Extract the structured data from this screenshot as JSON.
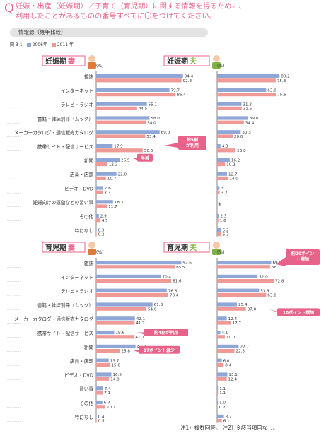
{
  "header": {
    "q_mark": "Q",
    "question_line1": "妊娠・出産（妊娠期）／子育て（育児期）に関する情報を得るために、",
    "question_line2": "利用したことがあるものの番号すべてに〇をつけてください。",
    "subheading": "情報源（経年比較）",
    "figure_label": "図 3-1",
    "legend_2006": "2006年",
    "legend_2011": "2011 年"
  },
  "colors": {
    "y2006": "#8fa7d6",
    "y2011": "#f09a98",
    "accent_pink": "#e8638a",
    "green": "#7cb342"
  },
  "note": "注1）複数回答。 注2）※該当項目なし。",
  "chart_data": [
    {
      "type": "bar",
      "title": "妊娠期妻",
      "title_main": "妊娠期",
      "title_role": "妻",
      "unit": "(%)",
      "xlim": [
        0,
        100
      ],
      "categories": [
        "雑誌",
        "インターネット",
        "テレビ・ラジオ",
        "書籍・雑誌別冊（ムック）",
        "メーカーカタログ・通信販売カタログ",
        "携帯サイト・配信サービス",
        "新聞",
        "店員・店頭",
        "ビデオ・DVD",
        "妊婦向けの運動などの習い事",
        "その他",
        "特になし"
      ],
      "series": [
        {
          "name": "2006年",
          "values": [
            94.4,
            79.7,
            55.1,
            58.0,
            69.0,
            17.9,
            25.5,
            22.0,
            7.6,
            18.3,
            2.9,
            0.3
          ]
        },
        {
          "name": "2011 年",
          "values": [
            92.8,
            86.4,
            44.5,
            54.0,
            53.4,
            50.6,
            12.2,
            10.7,
            7.3,
            11.7,
            4.5,
            0.2
          ]
        }
      ],
      "callouts": [
        {
          "text": "約5割が利用"
        },
        {
          "text": "半減"
        }
      ]
    },
    {
      "type": "bar",
      "title": "妊娠期夫",
      "title_main": "妊娠期",
      "title_role": "夫",
      "unit": "(%)",
      "xlim": [
        0,
        100
      ],
      "categories": [
        "雑誌",
        "インターネット",
        "テレビ・ラジオ",
        "書籍・雑誌別冊（ムック）",
        "メーカーカタログ・通信販売カタログ",
        "携帯サイト・配信サービス",
        "新聞",
        "店員・店頭",
        "ビデオ・DVD",
        "妊婦向けの運動などの習い事",
        "その他",
        "特になし"
      ],
      "series": [
        {
          "name": "2006年",
          "values": [
            80.2,
            63.0,
            31.3,
            39.8,
            30.3,
            4.3,
            16.2,
            12.7,
            3.1,
            null,
            2.3,
            5.2
          ]
        },
        {
          "name": "2011 年",
          "values": [
            75.3,
            75.6,
            31.6,
            34.4,
            20.0,
            23.8,
            10.2,
            14.0,
            3.2,
            null,
            1.6,
            5.3
          ]
        }
      ],
      "na_marker": "※"
    },
    {
      "type": "bar",
      "title": "育児期妻",
      "title_main": "育児期",
      "title_role": "妻",
      "unit": "(%)",
      "xlim": [
        0,
        100
      ],
      "categories": [
        "雑誌",
        "インターネット",
        "テレビ・ラジオ",
        "書籍・雑誌別冊（ムック）",
        "メーカーカタログ・通信販売カタログ",
        "携帯サイト・配信サービス",
        "新聞",
        "店員・店頭",
        "ビデオ・DVD",
        "習い事",
        "その他",
        "特になし"
      ],
      "series": [
        {
          "name": "2006年",
          "values": [
            92.6,
            70.4,
            76.8,
            61.3,
            42.1,
            19.6,
            42.8,
            13.7,
            16.5,
            7.4,
            6.7,
            0.4
          ]
        },
        {
          "name": "2011 年",
          "values": [
            85.5,
            81.6,
            78.4,
            54.6,
            41.7,
            41.1,
            25.8,
            15.0,
            14.0,
            7.1,
            10.1,
            0.5
          ]
        }
      ],
      "callouts": [
        {
          "text": "約4割が利用"
        },
        {
          "text": "17ポイント減少"
        }
      ]
    },
    {
      "type": "bar",
      "title": "育児期夫",
      "title_main": "育児期",
      "title_role": "夫",
      "unit": "(%)",
      "xlim": [
        0,
        100
      ],
      "categories": [
        "雑誌",
        "インターネット",
        "テレビ・ラジオ",
        "書籍・雑誌別冊（ムック）",
        "メーカーカタログ・通信販売カタログ",
        "携帯サイト・配信サービス",
        "新聞",
        "店員・店頭",
        "ビデオ・DVD",
        "習い事",
        "その他",
        "特になし"
      ],
      "series": [
        {
          "name": "2006年",
          "values": [
            69.5,
            52.0,
            53.9,
            25.4,
            12.4,
            4.1,
            27.7,
            6.0,
            13.1,
            1.1,
            1.0,
            8.7
          ]
        },
        {
          "name": "2011 年",
          "values": [
            68.1,
            72.8,
            63.0,
            37.0,
            17.7,
            10.0,
            22.3,
            8.4,
            12.4,
            1.1,
            0.7,
            6.1
          ]
        }
      ],
      "callouts": [
        {
          "text": "約20ポイント増加"
        },
        {
          "text": "10ポイント増加"
        }
      ]
    }
  ]
}
